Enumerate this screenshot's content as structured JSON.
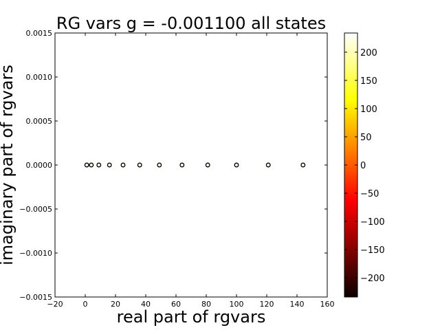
{
  "chart_data": {
    "type": "scatter",
    "title": "RG vars g = -0.001100 all states",
    "xlabel": "real part of rgvars",
    "ylabel": "imaginary part of rgvars",
    "xlim": [
      -20,
      160
    ],
    "ylim": [
      -0.0015,
      0.0015
    ],
    "x_ticks": [
      -20,
      0,
      20,
      40,
      60,
      80,
      100,
      120,
      140,
      160
    ],
    "y_ticks": [
      -0.0015,
      -0.001,
      -0.0005,
      0.0,
      0.0005,
      0.001,
      0.0015
    ],
    "y_tick_labels": [
      "−0.0015",
      "−0.0010",
      "−0.0005",
      "0.0000",
      "0.0005",
      "0.0010",
      "0.0015"
    ],
    "grid": false,
    "colorbar": {
      "colormap": "hot",
      "range": [
        -234,
        234
      ],
      "ticks": [
        -200,
        -150,
        -100,
        -50,
        0,
        50,
        100,
        150,
        200
      ],
      "tick_labels": [
        "−200",
        "−150",
        "−100",
        "−50",
        "0",
        "50",
        "100",
        "150",
        "200"
      ]
    },
    "points": [
      {
        "x": 1,
        "y": 0
      },
      {
        "x": 4,
        "y": 0
      },
      {
        "x": 9,
        "y": 0
      },
      {
        "x": 16,
        "y": 0
      },
      {
        "x": 25,
        "y": 0
      },
      {
        "x": 36,
        "y": 0
      },
      {
        "x": 49,
        "y": 0
      },
      {
        "x": 64,
        "y": 0
      },
      {
        "x": 81,
        "y": 0
      },
      {
        "x": 100,
        "y": 0
      },
      {
        "x": 121,
        "y": 0
      },
      {
        "x": 144,
        "y": 0
      }
    ],
    "marker_fill": "#ffffe8",
    "marker_edge": "#000000"
  }
}
